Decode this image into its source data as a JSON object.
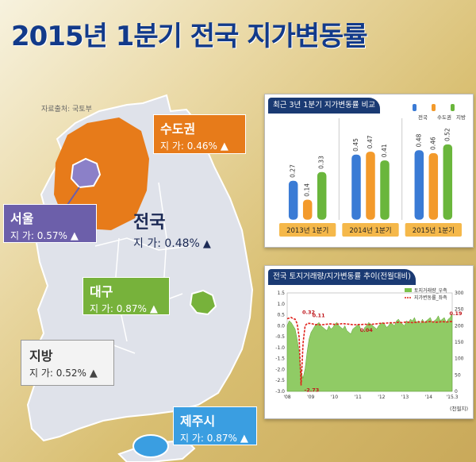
{
  "title": "2015년 1분기 전국 지가변동률",
  "source": "자료출처: 국토부",
  "regions": {
    "capital": {
      "name": "수도권",
      "value_text": "지  가: 0.46%",
      "arrow": "▲"
    },
    "seoul": {
      "name": "서울",
      "value_text": "지  가: 0.57%",
      "arrow": "▲"
    },
    "national": {
      "name": "전국",
      "value_text": "지  가: 0.48%",
      "arrow": "▲"
    },
    "daegu": {
      "name": "대구",
      "value_text": "지  가: 0.87%",
      "arrow": "▲"
    },
    "local": {
      "name": "지방",
      "value_text": "지  가: 0.52%",
      "arrow": "▲"
    },
    "jeju": {
      "name": "제주시",
      "value_text": "지  가: 0.87%",
      "arrow": "▲"
    }
  },
  "colors": {
    "capital": "#e77b1a",
    "seoul": "#6c5faa",
    "daegu": "#77b23b",
    "jeju": "#3a9ee1",
    "title": "#123a8a",
    "panel_header": "#1a3a73"
  },
  "chart_data": [
    {
      "type": "bar",
      "title": "최근 3년 1분기 지가변동률 비교",
      "categories": [
        "2013년 1분기",
        "2014년 1분기",
        "2015년 1분기"
      ],
      "series": [
        {
          "name": "전국",
          "color": "#3a7bd5",
          "values": [
            0.27,
            0.45,
            0.48
          ]
        },
        {
          "name": "수도권",
          "color": "#f39a2b",
          "values": [
            0.14,
            0.47,
            0.46
          ]
        },
        {
          "name": "지방",
          "color": "#6ab63c",
          "values": [
            0.33,
            0.41,
            0.52
          ]
        }
      ],
      "ylim": [
        0,
        0.6
      ]
    },
    {
      "type": "line",
      "title": "전국 토지거래량/지가변동률 추이(전월대비)",
      "x_ticks": [
        "'08",
        "'09",
        "'10",
        "'11",
        "'12",
        "'13",
        "'14",
        "'15.3"
      ],
      "series": [
        {
          "name": "토지거래량_우측",
          "kind": "area",
          "color": "#7cc24a",
          "axis": "right",
          "values": [
            200,
            215,
            210,
            200,
            190,
            160,
            120,
            60,
            40,
            70,
            120,
            160,
            180,
            190,
            200,
            205,
            210,
            200,
            195,
            190,
            185,
            200,
            190,
            195,
            205,
            210,
            200,
            195,
            190,
            200,
            185,
            180,
            175,
            190,
            195,
            200,
            205,
            190,
            180,
            195,
            200,
            210,
            205,
            200,
            195,
            190,
            200,
            205,
            210,
            205,
            195,
            200,
            210,
            205,
            200,
            215,
            220,
            210,
            205,
            200,
            215,
            210,
            220,
            215,
            225,
            210,
            215,
            205,
            220,
            210,
            215,
            220,
            225,
            210,
            215,
            220,
            230,
            215,
            220,
            225,
            210,
            220,
            225,
            240
          ]
        },
        {
          "name": "지가변동률_좌측",
          "kind": "line",
          "color": "#e0221c",
          "axis": "left",
          "values": [
            0.32,
            0.35,
            0.38,
            0.32,
            0.3,
            0.1,
            -0.5,
            -2.73,
            -0.8,
            0.0,
            0.1,
            0.11,
            0.1,
            0.08,
            0.05,
            0.06,
            0.05,
            0.04,
            0.05,
            0.06,
            0.07,
            0.08,
            0.08,
            0.07,
            0.06,
            0.07,
            0.08,
            0.09,
            0.1,
            0.09,
            0.08,
            0.07,
            0.06,
            0.05,
            0.05,
            0.04,
            0.06,
            0.05,
            0.06,
            0.07,
            0.06,
            0.05,
            0.06,
            0.07,
            0.08,
            0.09,
            0.1,
            0.11,
            0.12,
            0.11,
            0.12,
            0.13,
            0.14,
            0.13,
            0.14,
            0.15,
            0.16,
            0.15,
            0.14,
            0.16,
            0.17,
            0.16,
            0.15,
            0.14,
            0.16,
            0.15,
            0.17,
            0.18,
            0.17,
            0.16,
            0.17,
            0.18,
            0.19,
            0.18,
            0.17,
            0.16,
            0.17,
            0.18,
            0.19,
            0.18,
            0.17,
            0.18,
            0.19,
            0.19
          ]
        }
      ],
      "annotations": [
        "0.32",
        "-2.73",
        "0.11",
        "0.04",
        "0.19"
      ],
      "y_left": {
        "lim": [
          -3.0,
          1.5
        ],
        "ticks": [
          "1.5",
          "1.0",
          "0.5",
          "0.0",
          "-0.5",
          "-1.0",
          "-1.5",
          "-2.0",
          "-2.5",
          "-3.0"
        ]
      },
      "y_right": {
        "lim": [
          0,
          300
        ],
        "ticks": [
          "300",
          "250",
          "200",
          "150",
          "100",
          "50",
          "0"
        ]
      },
      "unit_note": "(천필지)"
    }
  ]
}
